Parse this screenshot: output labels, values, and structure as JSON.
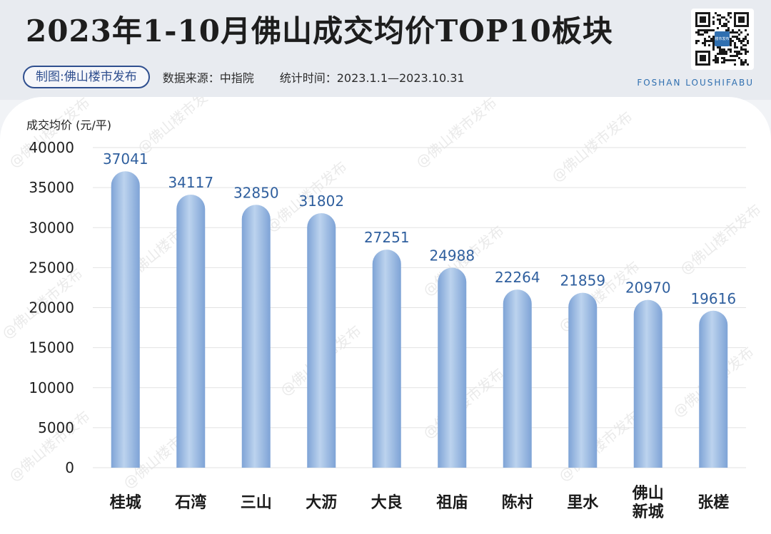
{
  "header": {
    "title": "2023年1-10月佛山成交均价TOP10板块",
    "maker": "制图:佛山楼市发布",
    "source": "数据来源：中指院",
    "period": "统计时间：2023.1.1—2023.10.31",
    "brand_en": "FOSHAN LOUSHIFABU",
    "watermark": "@佛山楼市发布",
    "qr_label": "楼市发布"
  },
  "colors": {
    "bar_light": "#bcd3ee",
    "bar_dark": "#7ea3d6",
    "value_label": "#2f5f9e",
    "grid": "#e2e2e2",
    "title": "#1d1d1d"
  },
  "chart_data": {
    "type": "bar",
    "ylabel": "成交均价 (元/平)",
    "xlabel": "",
    "ylim": [
      0,
      40000
    ],
    "yticks": [
      0,
      5000,
      10000,
      15000,
      20000,
      25000,
      30000,
      35000,
      40000
    ],
    "grid": true,
    "categories": [
      "桂城",
      "石湾",
      "三山",
      "大沥",
      "大良",
      "祖庙",
      "陈村",
      "里水",
      "佛山\n新城",
      "张槎"
    ],
    "values": [
      37041,
      34117,
      32850,
      31802,
      27251,
      24988,
      22264,
      21859,
      20970,
      19616
    ]
  }
}
